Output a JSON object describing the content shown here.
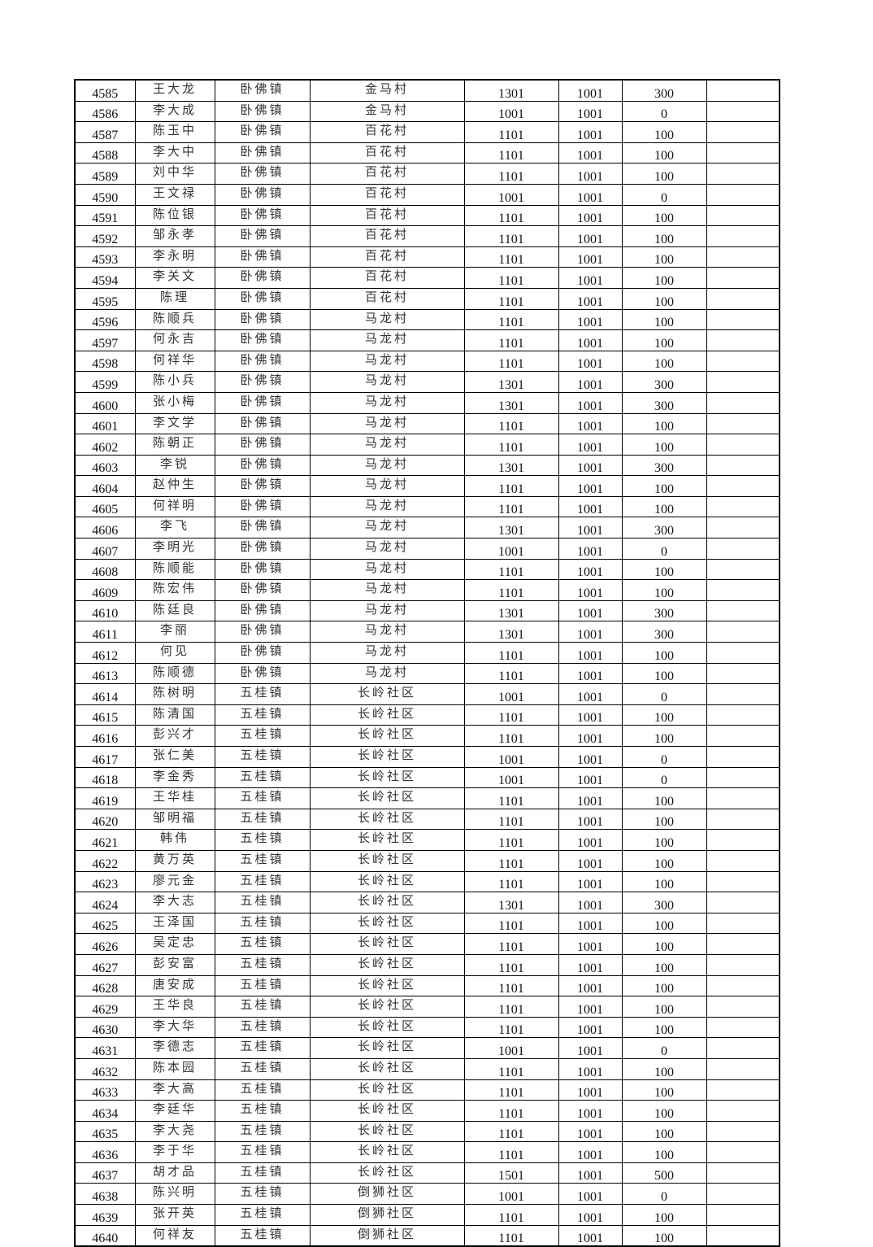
{
  "table": {
    "rows": [
      [
        "4585",
        "王大龙",
        "卧佛镇",
        "金马村",
        "1301",
        "1001",
        "300",
        ""
      ],
      [
        "4586",
        "李大成",
        "卧佛镇",
        "金马村",
        "1001",
        "1001",
        "0",
        ""
      ],
      [
        "4587",
        "陈玉中",
        "卧佛镇",
        "百花村",
        "1101",
        "1001",
        "100",
        ""
      ],
      [
        "4588",
        "李大中",
        "卧佛镇",
        "百花村",
        "1101",
        "1001",
        "100",
        ""
      ],
      [
        "4589",
        "刘中华",
        "卧佛镇",
        "百花村",
        "1101",
        "1001",
        "100",
        ""
      ],
      [
        "4590",
        "王文禄",
        "卧佛镇",
        "百花村",
        "1001",
        "1001",
        "0",
        ""
      ],
      [
        "4591",
        "陈位银",
        "卧佛镇",
        "百花村",
        "1101",
        "1001",
        "100",
        ""
      ],
      [
        "4592",
        "邹永孝",
        "卧佛镇",
        "百花村",
        "1101",
        "1001",
        "100",
        ""
      ],
      [
        "4593",
        "李永明",
        "卧佛镇",
        "百花村",
        "1101",
        "1001",
        "100",
        ""
      ],
      [
        "4594",
        "李关文",
        "卧佛镇",
        "百花村",
        "1101",
        "1001",
        "100",
        ""
      ],
      [
        "4595",
        "陈理",
        "卧佛镇",
        "百花村",
        "1101",
        "1001",
        "100",
        ""
      ],
      [
        "4596",
        "陈顺兵",
        "卧佛镇",
        "马龙村",
        "1101",
        "1001",
        "100",
        ""
      ],
      [
        "4597",
        "何永吉",
        "卧佛镇",
        "马龙村",
        "1101",
        "1001",
        "100",
        ""
      ],
      [
        "4598",
        "何祥华",
        "卧佛镇",
        "马龙村",
        "1101",
        "1001",
        "100",
        ""
      ],
      [
        "4599",
        "陈小兵",
        "卧佛镇",
        "马龙村",
        "1301",
        "1001",
        "300",
        ""
      ],
      [
        "4600",
        "张小梅",
        "卧佛镇",
        "马龙村",
        "1301",
        "1001",
        "300",
        ""
      ],
      [
        "4601",
        "李文学",
        "卧佛镇",
        "马龙村",
        "1101",
        "1001",
        "100",
        ""
      ],
      [
        "4602",
        "陈朝正",
        "卧佛镇",
        "马龙村",
        "1101",
        "1001",
        "100",
        ""
      ],
      [
        "4603",
        "李锐",
        "卧佛镇",
        "马龙村",
        "1301",
        "1001",
        "300",
        ""
      ],
      [
        "4604",
        "赵仲生",
        "卧佛镇",
        "马龙村",
        "1101",
        "1001",
        "100",
        ""
      ],
      [
        "4605",
        "何祥明",
        "卧佛镇",
        "马龙村",
        "1101",
        "1001",
        "100",
        ""
      ],
      [
        "4606",
        "李飞",
        "卧佛镇",
        "马龙村",
        "1301",
        "1001",
        "300",
        ""
      ],
      [
        "4607",
        "李明光",
        "卧佛镇",
        "马龙村",
        "1001",
        "1001",
        "0",
        ""
      ],
      [
        "4608",
        "陈顺能",
        "卧佛镇",
        "马龙村",
        "1101",
        "1001",
        "100",
        ""
      ],
      [
        "4609",
        "陈宏伟",
        "卧佛镇",
        "马龙村",
        "1101",
        "1001",
        "100",
        ""
      ],
      [
        "4610",
        "陈廷良",
        "卧佛镇",
        "马龙村",
        "1301",
        "1001",
        "300",
        ""
      ],
      [
        "4611",
        "李丽",
        "卧佛镇",
        "马龙村",
        "1301",
        "1001",
        "300",
        ""
      ],
      [
        "4612",
        "何见",
        "卧佛镇",
        "马龙村",
        "1101",
        "1001",
        "100",
        ""
      ],
      [
        "4613",
        "陈顺德",
        "卧佛镇",
        "马龙村",
        "1101",
        "1001",
        "100",
        ""
      ],
      [
        "4614",
        "陈树明",
        "五桂镇",
        "长岭社区",
        "1001",
        "1001",
        "0",
        ""
      ],
      [
        "4615",
        "陈清国",
        "五桂镇",
        "长岭社区",
        "1101",
        "1001",
        "100",
        ""
      ],
      [
        "4616",
        "彭兴才",
        "五桂镇",
        "长岭社区",
        "1101",
        "1001",
        "100",
        ""
      ],
      [
        "4617",
        "张仁美",
        "五桂镇",
        "长岭社区",
        "1001",
        "1001",
        "0",
        ""
      ],
      [
        "4618",
        "李金秀",
        "五桂镇",
        "长岭社区",
        "1001",
        "1001",
        "0",
        ""
      ],
      [
        "4619",
        "王华桂",
        "五桂镇",
        "长岭社区",
        "1101",
        "1001",
        "100",
        ""
      ],
      [
        "4620",
        "邹明福",
        "五桂镇",
        "长岭社区",
        "1101",
        "1001",
        "100",
        ""
      ],
      [
        "4621",
        "韩伟",
        "五桂镇",
        "长岭社区",
        "1101",
        "1001",
        "100",
        ""
      ],
      [
        "4622",
        "黄万英",
        "五桂镇",
        "长岭社区",
        "1101",
        "1001",
        "100",
        ""
      ],
      [
        "4623",
        "廖元金",
        "五桂镇",
        "长岭社区",
        "1101",
        "1001",
        "100",
        ""
      ],
      [
        "4624",
        "李大志",
        "五桂镇",
        "长岭社区",
        "1301",
        "1001",
        "300",
        ""
      ],
      [
        "4625",
        "王泽国",
        "五桂镇",
        "长岭社区",
        "1101",
        "1001",
        "100",
        ""
      ],
      [
        "4626",
        "吴定忠",
        "五桂镇",
        "长岭社区",
        "1101",
        "1001",
        "100",
        ""
      ],
      [
        "4627",
        "彭安富",
        "五桂镇",
        "长岭社区",
        "1101",
        "1001",
        "100",
        ""
      ],
      [
        "4628",
        "唐安成",
        "五桂镇",
        "长岭社区",
        "1101",
        "1001",
        "100",
        ""
      ],
      [
        "4629",
        "王华良",
        "五桂镇",
        "长岭社区",
        "1101",
        "1001",
        "100",
        ""
      ],
      [
        "4630",
        "李大华",
        "五桂镇",
        "长岭社区",
        "1101",
        "1001",
        "100",
        ""
      ],
      [
        "4631",
        "李德志",
        "五桂镇",
        "长岭社区",
        "1001",
        "1001",
        "0",
        ""
      ],
      [
        "4632",
        "陈本园",
        "五桂镇",
        "长岭社区",
        "1101",
        "1001",
        "100",
        ""
      ],
      [
        "4633",
        "李大高",
        "五桂镇",
        "长岭社区",
        "1101",
        "1001",
        "100",
        ""
      ],
      [
        "4634",
        "李廷华",
        "五桂镇",
        "长岭社区",
        "1101",
        "1001",
        "100",
        ""
      ],
      [
        "4635",
        "李大尧",
        "五桂镇",
        "长岭社区",
        "1101",
        "1001",
        "100",
        ""
      ],
      [
        "4636",
        "李于华",
        "五桂镇",
        "长岭社区",
        "1101",
        "1001",
        "100",
        ""
      ],
      [
        "4637",
        "胡才品",
        "五桂镇",
        "长岭社区",
        "1501",
        "1001",
        "500",
        ""
      ],
      [
        "4638",
        "陈兴明",
        "五桂镇",
        "倒狮社区",
        "1001",
        "1001",
        "0",
        ""
      ],
      [
        "4639",
        "张开英",
        "五桂镇",
        "倒狮社区",
        "1101",
        "1001",
        "100",
        ""
      ],
      [
        "4640",
        "何祥友",
        "五桂镇",
        "倒狮社区",
        "1101",
        "1001",
        "100",
        ""
      ]
    ]
  }
}
